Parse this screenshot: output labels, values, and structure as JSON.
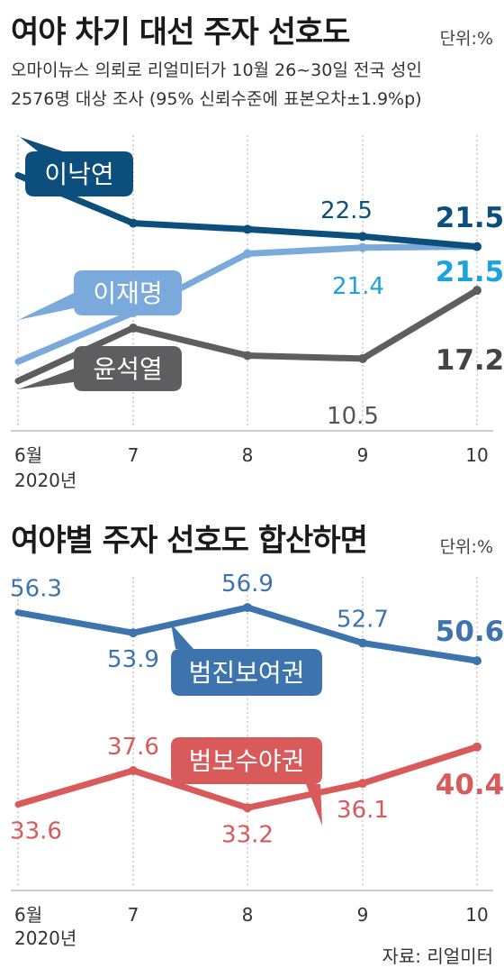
{
  "chart1": {
    "title": "여야 차기 대선 주자 선호도",
    "unit": "단위:%",
    "subtitle": [
      "오마이뉴스 의뢰로 리얼미터가 10월 26~30일 전국 성인",
      "2576명 대상 조사 (95% 신뢰수준에 표본오차±1.9%p)"
    ]
  },
  "chart2": {
    "title": "여야별 주자 선호도 합산하면",
    "unit": "단위:%"
  },
  "source": "자료: 리얼미터",
  "colors": {
    "lee_nakyon": "#0d4f7c",
    "lee_jaemyung": "#7aa9dc",
    "yoon": "#5e5e60",
    "liberal": "#3e74ae",
    "conservative": "#d85a5a",
    "value_cyan": "#1aa3dc"
  },
  "chart_data": [
    {
      "type": "line",
      "categories": [
        "6월\n2020년",
        "7",
        "8",
        "9",
        "10"
      ],
      "series": [
        {
          "name": "이낙연",
          "values": [
            null,
            null,
            null,
            22.5,
            21.5
          ],
          "color": "#0d4f7c",
          "labels": [
            null,
            null,
            null,
            "22.5",
            "21.5"
          ]
        },
        {
          "name": "이재명",
          "values": [
            null,
            null,
            null,
            21.4,
            21.5
          ],
          "color": "#7aa9dc",
          "labels": [
            null,
            null,
            null,
            "21.4",
            "21.5"
          ]
        },
        {
          "name": "윤석열",
          "values": [
            null,
            null,
            null,
            10.5,
            17.2
          ],
          "color": "#5e5e60",
          "labels": [
            null,
            null,
            null,
            "10.5",
            "17.2"
          ]
        }
      ],
      "ylim": [
        5,
        32
      ]
    },
    {
      "type": "line",
      "categories": [
        "6월\n2020년",
        "7",
        "8",
        "9",
        "10"
      ],
      "series": [
        {
          "name": "범진보여권",
          "values": [
            56.3,
            53.9,
            56.9,
            52.7,
            50.6
          ],
          "color": "#3e74ae"
        },
        {
          "name": "범보수야권",
          "values": [
            33.6,
            37.6,
            33.2,
            36.1,
            40.4
          ],
          "color": "#d85a5a"
        }
      ],
      "ylim": [
        28,
        60
      ]
    }
  ]
}
